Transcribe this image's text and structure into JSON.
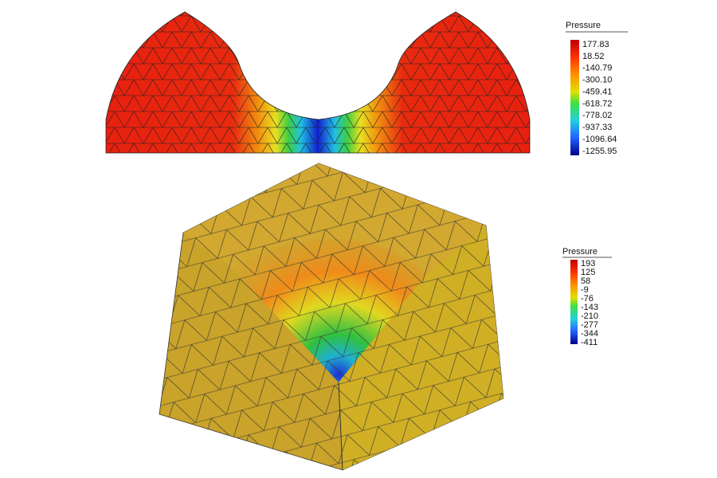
{
  "legends": [
    {
      "title": "Pressure",
      "labels": [
        "177.83",
        "18.52",
        "-140.79",
        "-300.10",
        "-459.41",
        "-618.72",
        "-778.02",
        "-937.33",
        "-1096.64",
        "-1255.95"
      ]
    },
    {
      "title": "Pressure",
      "labels": [
        "193",
        "125",
        "58",
        "-9",
        "-76",
        "-143",
        "-210",
        "-277",
        "-344",
        "-411"
      ]
    }
  ]
}
